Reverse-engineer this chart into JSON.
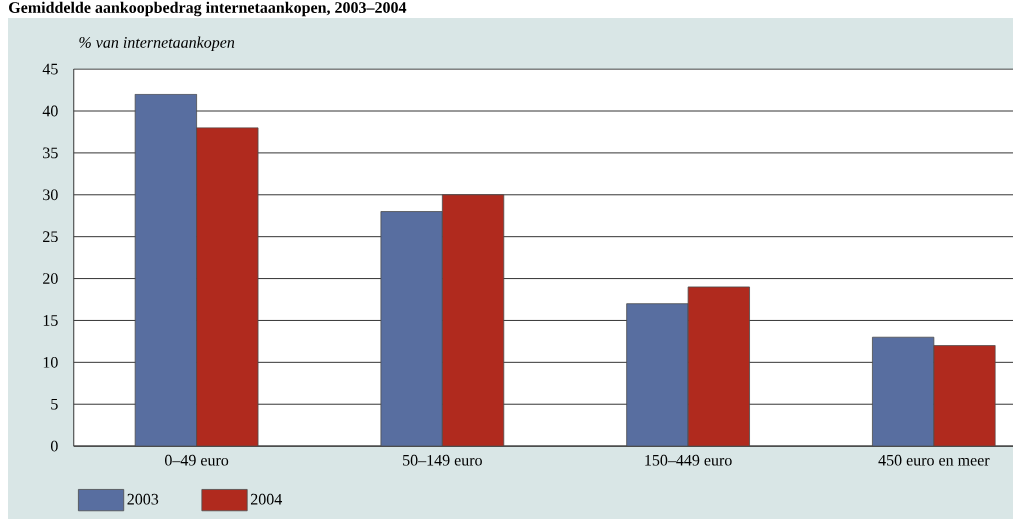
{
  "chart_data": {
    "type": "bar",
    "title": "Gemiddelde aankoopbedrag internetaankopen, 2003–2004",
    "ylabel": "% van internetaankopen",
    "categories": [
      "0–49 euro",
      "50–149 euro",
      "150–449 euro",
      "450 euro en meer"
    ],
    "series": [
      {
        "name": "2003",
        "color": "#586ea0",
        "values": [
          42,
          28,
          17,
          13
        ]
      },
      {
        "name": "2004",
        "color": "#b02a1e",
        "values": [
          38,
          30,
          19,
          12
        ]
      }
    ],
    "ylim": [
      0,
      45
    ],
    "yticks": [
      0,
      5,
      10,
      15,
      20,
      25,
      30,
      35,
      40,
      45
    ],
    "grid": "y",
    "legend": "bottom left"
  }
}
